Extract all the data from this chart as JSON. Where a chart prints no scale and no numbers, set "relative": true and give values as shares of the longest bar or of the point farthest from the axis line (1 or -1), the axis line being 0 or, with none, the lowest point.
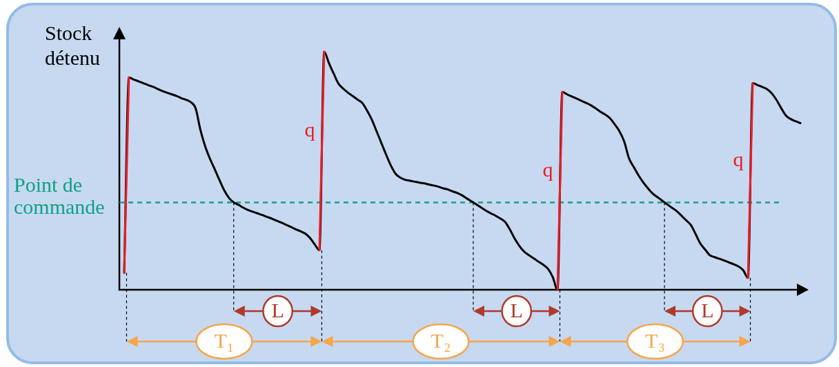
{
  "chart_data": {
    "type": "line",
    "relative": true,
    "ylabel": "Stock détenu",
    "marker": "none",
    "categories": [
      null,
      null,
      null,
      null,
      null,
      null,
      null,
      null,
      null,
      null,
      null,
      null,
      null,
      null,
      null,
      null,
      null,
      null,
      null,
      null,
      null,
      null,
      null,
      null,
      null,
      null,
      null,
      null,
      null,
      null,
      null,
      null,
      null,
      null,
      null,
      null,
      null,
      null,
      null,
      null,
      null,
      null,
      null,
      null,
      null,
      null,
      null,
      null,
      null,
      null,
      null,
      null,
      null,
      null,
      null,
      null,
      null,
      null,
      null,
      null,
      null,
      null,
      null,
      null,
      null,
      null,
      null,
      null,
      null,
      null,
      null,
      null,
      null,
      null,
      null,
      null,
      null,
      null,
      null,
      null,
      null,
      null,
      null,
      null,
      null,
      null,
      null,
      null,
      null,
      null,
      null,
      null,
      null,
      null,
      null,
      null,
      null,
      null,
      null,
      null,
      null,
      null,
      null,
      null,
      null,
      null,
      null,
      null,
      null,
      null,
      null,
      null,
      null,
      null,
      null,
      null,
      null,
      null,
      null,
      null,
      null,
      null,
      null,
      null,
      null,
      null,
      null,
      null,
      null,
      null,
      null,
      null,
      null,
      null,
      null,
      null,
      null,
      null,
      null,
      null,
      null,
      null,
      null
    ],
    "series": [
      {
        "color": "#000000",
        "values": [
          0.071,
          0.892,
          0.883,
          0.876,
          0.868,
          0.86,
          0.853,
          0.844,
          0.835,
          0.828,
          0.821,
          0.814,
          0.805,
          0.798,
          0.788,
          0.762,
          0.672,
          0.603,
          0.551,
          0.507,
          0.461,
          0.418,
          0.386,
          0.367,
          0.357,
          0.345,
          0.335,
          0.328,
          0.321,
          0.314,
          0.306,
          0.299,
          0.29,
          0.282,
          0.273,
          0.264,
          0.254,
          0.246,
          0.236,
          0.218,
          0.191,
          0.166,
          1,
          0.952,
          0.908,
          0.866,
          0.845,
          0.828,
          0.814,
          0.799,
          0.785,
          0.753,
          0.715,
          0.666,
          0.617,
          0.568,
          0.522,
          0.487,
          0.471,
          0.462,
          0.458,
          0.454,
          0.45,
          0.447,
          0.442,
          0.438,
          0.433,
          0.426,
          0.421,
          0.413,
          0.406,
          0.396,
          0.383,
          0.371,
          0.358,
          0.345,
          0.332,
          0.321,
          0.311,
          0.299,
          0.285,
          0.253,
          0.215,
          0.184,
          0.16,
          0.145,
          0.132,
          0.118,
          0.105,
          0.088,
          0.053,
          0,
          0.831,
          0.821,
          0.812,
          0.803,
          0.794,
          0.785,
          0.775,
          0.762,
          0.748,
          0.736,
          0.721,
          0.695,
          0.666,
          0.623,
          0.553,
          0.516,
          0.481,
          0.451,
          0.426,
          0.404,
          0.389,
          0.374,
          0.359,
          0.345,
          0.331,
          0.312,
          0.292,
          0.272,
          0.234,
          0.194,
          0.169,
          0.145,
          0.137,
          0.13,
          0.123,
          0.115,
          0.107,
          0.098,
          0.082,
          0.05,
          0.868,
          0.86,
          0.852,
          0.843,
          0.825,
          0.797,
          0.762,
          0.731,
          0.717,
          0.708,
          0.7
        ]
      },
      {
        "color": "#ed1c24",
        "values": [
          0.071,
          0.892,
          null,
          null,
          null,
          null,
          null,
          null,
          null,
          null,
          null,
          null,
          null,
          null,
          null,
          null,
          null,
          null,
          null,
          null,
          null,
          null,
          null,
          null,
          null,
          null,
          null,
          null,
          null,
          null,
          null,
          null,
          null,
          null,
          null,
          null,
          null,
          null,
          null,
          null,
          null,
          0.166,
          1,
          null,
          null,
          null,
          null,
          null,
          null,
          null,
          null,
          null,
          null,
          null,
          null,
          null,
          null,
          null,
          null,
          null,
          null,
          null,
          null,
          null,
          null,
          null,
          null,
          null,
          null,
          null,
          null,
          null,
          null,
          null,
          null,
          null,
          null,
          null,
          null,
          null,
          null,
          null,
          null,
          null,
          null,
          null,
          null,
          null,
          null,
          null,
          null,
          0,
          0.831,
          null,
          null,
          null,
          null,
          null,
          null,
          null,
          null,
          null,
          null,
          null,
          null,
          null,
          null,
          null,
          null,
          null,
          null,
          null,
          null,
          null,
          null,
          null,
          null,
          null,
          null,
          null,
          null,
          null,
          null,
          null,
          null,
          null,
          null,
          null,
          null,
          null,
          null,
          0.05,
          0.868,
          null,
          null,
          null,
          null,
          null,
          null,
          null,
          null,
          null,
          null
        ]
      }
    ],
    "ref_lines": [
      {
        "axis": "y",
        "value": 0.367,
        "label": "Point de commande",
        "color": "#12a085",
        "line_style": "dashed"
      }
    ],
    "annotations": [
      "q",
      "q",
      "q",
      "L",
      "L",
      "L",
      "T₁",
      "T₂",
      "T₃"
    ]
  }
}
